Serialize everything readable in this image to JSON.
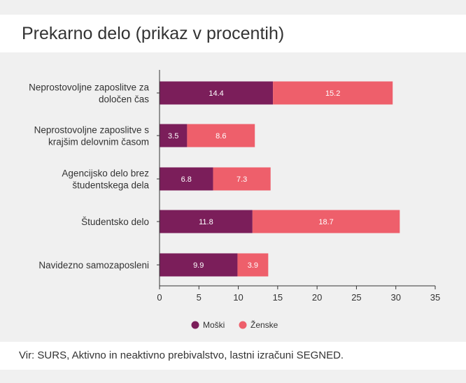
{
  "title": "Prekarno delo (prikaz v procentih)",
  "source": "Vir: SURS, Aktivno in neaktivno prebivalstvo, lastni izračuni SEGNED.",
  "colors": {
    "moski": "#7b1e5a",
    "zenske": "#ee5f6b"
  },
  "chart_data": {
    "type": "bar",
    "orientation": "horizontal",
    "stacked": true,
    "categories": [
      [
        "Neprostovoljne zaposlitve za",
        "določen čas"
      ],
      [
        "Neprostovoljne zaposlitve s",
        "krajšim delovnim časom"
      ],
      [
        "Agencijsko delo brez",
        "študentskega dela"
      ],
      [
        "Študentsko delo"
      ],
      [
        "Navidezno samozaposleni"
      ]
    ],
    "series": [
      {
        "name": "Moški",
        "values": [
          14.4,
          3.5,
          6.8,
          11.8,
          9.9
        ]
      },
      {
        "name": "Ženske",
        "values": [
          15.2,
          8.6,
          7.3,
          18.7,
          3.9
        ]
      }
    ],
    "xlim": [
      0,
      35
    ],
    "xticks": [
      0,
      5,
      10,
      15,
      20,
      25,
      30,
      35
    ],
    "grid": false,
    "legend_position": "bottom"
  }
}
